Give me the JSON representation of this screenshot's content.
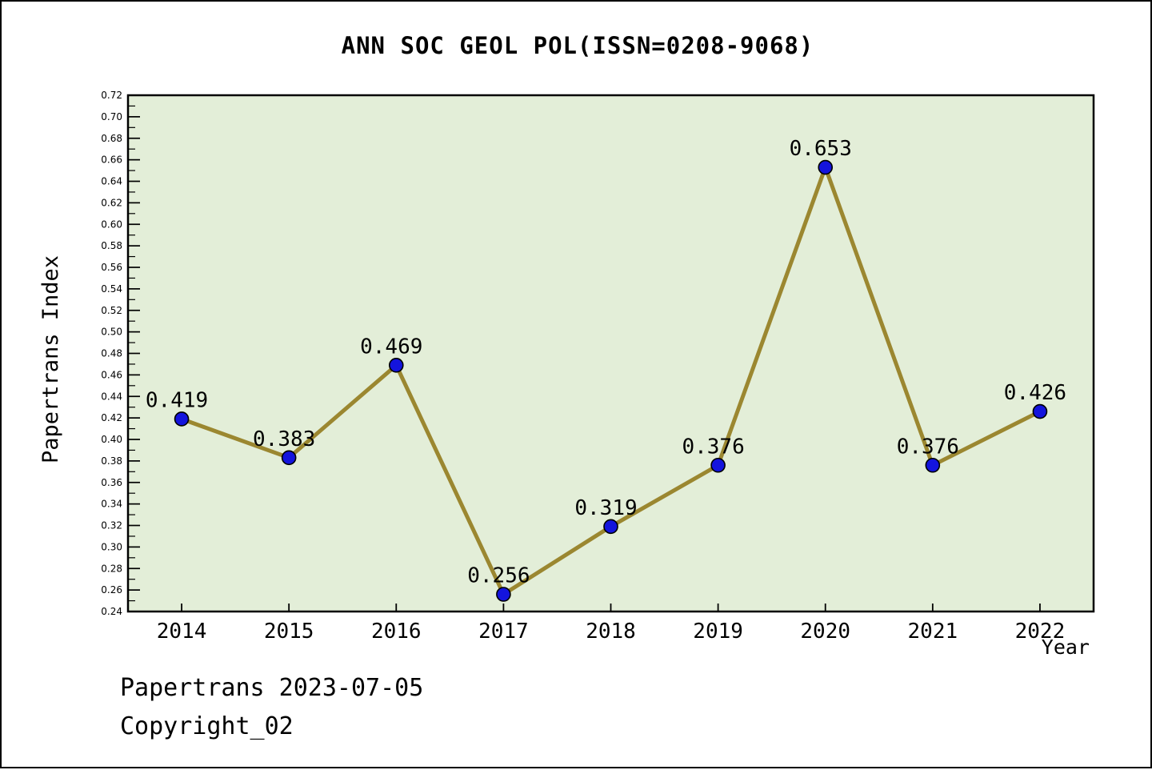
{
  "chart_data": {
    "type": "line",
    "title": "ANN SOC GEOL POL(ISSN=0208-9068)",
    "xlabel": "Year",
    "ylabel": "Papertrans Index",
    "categories": [
      "2014",
      "2015",
      "2016",
      "2017",
      "2018",
      "2019",
      "2020",
      "2021",
      "2022"
    ],
    "series": [
      {
        "name": "Papertrans Index",
        "values": [
          0.419,
          0.383,
          0.469,
          0.256,
          0.319,
          0.376,
          0.653,
          0.376,
          0.426
        ]
      }
    ],
    "point_labels": [
      "0.419",
      "0.383",
      "0.469",
      "0.256",
      "0.319",
      "0.376",
      "0.653",
      "0.376",
      "0.426"
    ],
    "ylim": [
      0.24,
      0.72
    ],
    "y_major_step": 0.02,
    "y_minor_step": 0.01,
    "y_tick_labels": [
      "0.24",
      "0.26",
      "0.28",
      "0.30",
      "0.32",
      "0.34",
      "0.36",
      "0.38",
      "0.40",
      "0.42",
      "0.44",
      "0.46",
      "0.48",
      "0.50",
      "0.52",
      "0.54",
      "0.56",
      "0.58",
      "0.60",
      "0.62",
      "0.64",
      "0.66",
      "0.68",
      "0.70",
      "0.72"
    ],
    "grid": false,
    "legend": "none",
    "colors": {
      "line": "#9b8730",
      "marker_fill": "#1414dd",
      "marker_edge": "#000000",
      "plot_bg": "#e3eed8",
      "axis": "#000000",
      "text": "#000000"
    }
  },
  "footer": {
    "line1": "Papertrans 2023-07-05",
    "line2": "Copyright_02"
  }
}
